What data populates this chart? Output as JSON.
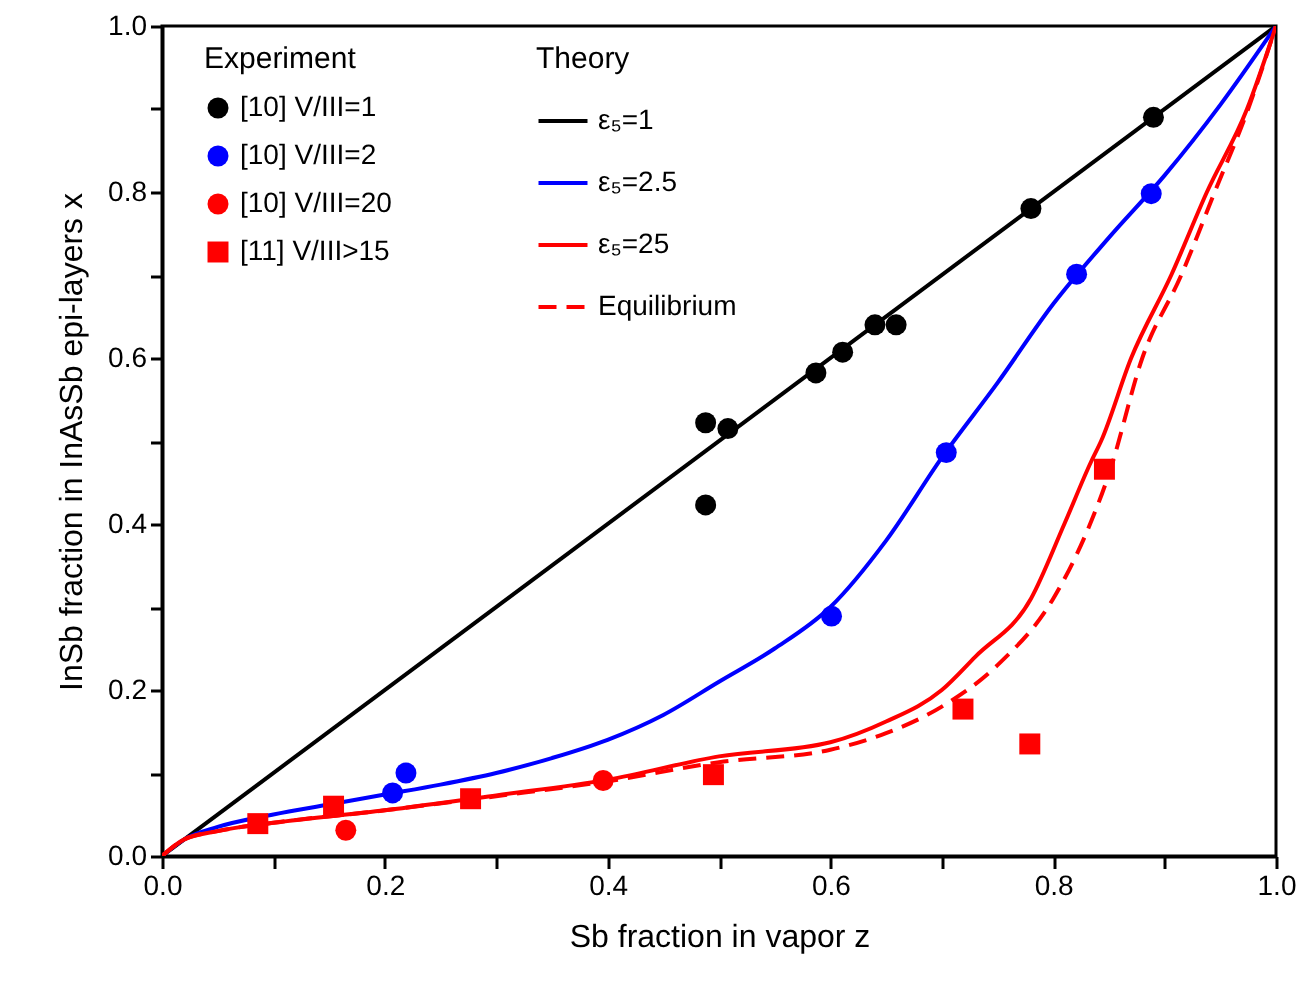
{
  "chart_data": {
    "type": "line",
    "xlabel": "Sb fraction in vapor z",
    "ylabel": "InSb fraction in InAsSb epi-layers x",
    "xlim": [
      0,
      1
    ],
    "ylim": [
      0,
      1
    ],
    "xticks": [
      {
        "value": 0,
        "label": "0.0"
      },
      {
        "value": 0.1,
        "label": null
      },
      {
        "value": 0.2,
        "label": "0.2"
      },
      {
        "value": 0.3,
        "label": null
      },
      {
        "value": 0.4,
        "label": "0.4"
      },
      {
        "value": 0.5,
        "label": null
      },
      {
        "value": 0.6,
        "label": "0.6"
      },
      {
        "value": 0.7,
        "label": null
      },
      {
        "value": 0.8,
        "label": "0.8"
      },
      {
        "value": 0.9,
        "label": null
      },
      {
        "value": 1,
        "label": "1.0"
      }
    ],
    "yticks": [
      {
        "value": 0,
        "label": "0.0"
      },
      {
        "value": 0.1,
        "label": null
      },
      {
        "value": 0.2,
        "label": "0.2"
      },
      {
        "value": 0.3,
        "label": null
      },
      {
        "value": 0.4,
        "label": "0.4"
      },
      {
        "value": 0.5,
        "label": null
      },
      {
        "value": 0.6,
        "label": "0.6"
      },
      {
        "value": 0.7,
        "label": null
      },
      {
        "value": 0.8,
        "label": "0.8"
      },
      {
        "value": 0.9,
        "label": null
      },
      {
        "value": 1,
        "label": "1.0"
      }
    ],
    "legend": "top left",
    "legend_title": "Experiment",
    "annotations": [
      "Theory"
    ],
    "series": [
      {
        "name": "[10] V/III=1",
        "type": "scatter",
        "marker": "circle",
        "color": "#000000",
        "x": [
          0.488,
          0.508,
          0.488,
          0.587,
          0.611,
          0.64,
          0.659,
          0.78,
          0.89
        ],
        "values": [
          0.522,
          0.515,
          0.423,
          0.582,
          0.607,
          0.64,
          0.64,
          0.78,
          0.89
        ]
      },
      {
        "name": "[10] V/III=2",
        "type": "scatter",
        "marker": "circle",
        "color": "#0000ff",
        "x": [
          0.207,
          0.219,
          0.601,
          0.704,
          0.821,
          0.888
        ],
        "values": [
          0.076,
          0.1,
          0.289,
          0.486,
          0.701,
          0.798
        ]
      },
      {
        "name": "[10] V/III=20",
        "type": "scatter",
        "marker": "circle",
        "color": "#ff0000",
        "x": [
          0.165,
          0.396
        ],
        "values": [
          0.031,
          0.091
        ]
      },
      {
        "name": "[11] V/III>15",
        "type": "scatter",
        "marker": "square",
        "color": "#ff0000",
        "x": [
          0.086,
          0.154,
          0.277,
          0.495,
          0.719,
          0.779,
          0.846
        ],
        "values": [
          0.039,
          0.06,
          0.069,
          0.098,
          0.177,
          0.135,
          0.466
        ]
      },
      {
        "name": "ε₅=1",
        "line_style": "solid",
        "color": "#000000",
        "x": [
          0,
          1
        ],
        "values": [
          0,
          1
        ]
      },
      {
        "name": "ε₅=2.5",
        "line_style": "solid",
        "color": "#0000ff",
        "x": [
          0,
          0.02,
          0.05,
          0.1,
          0.15,
          0.2,
          0.25,
          0.3,
          0.35,
          0.4,
          0.45,
          0.5,
          0.55,
          0.6,
          0.65,
          0.7,
          0.75,
          0.8,
          0.85,
          0.9,
          0.95,
          1
        ],
        "values": [
          0,
          0.02,
          0.035,
          0.05,
          0.062,
          0.074,
          0.086,
          0.1,
          0.118,
          0.14,
          0.17,
          0.21,
          0.25,
          0.3,
          0.38,
          0.48,
          0.57,
          0.665,
          0.745,
          0.82,
          0.905,
          1
        ]
      },
      {
        "name": "ε₅=25",
        "line_style": "solid",
        "color": "#ff0000",
        "x": [
          0,
          0.02,
          0.05,
          0.1,
          0.2,
          0.3,
          0.4,
          0.5,
          0.6,
          0.65,
          0.7,
          0.73,
          0.78,
          0.81,
          0.834,
          0.843,
          0.87,
          0.906,
          0.938,
          0.974,
          1
        ],
        "values": [
          0,
          0.02,
          0.03,
          0.04,
          0.055,
          0.073,
          0.092,
          0.12,
          0.137,
          0.162,
          0.2,
          0.24,
          0.31,
          0.4,
          0.475,
          0.5,
          0.6,
          0.7,
          0.8,
          0.9,
          1
        ]
      },
      {
        "name": "Equilibrium",
        "line_style": "dashed",
        "color": "#ff0000",
        "x": [
          0,
          0.02,
          0.05,
          0.1,
          0.2,
          0.3,
          0.4,
          0.5,
          0.6,
          0.65,
          0.7,
          0.75,
          0.8,
          0.83,
          0.85,
          0.88,
          0.915,
          0.945,
          0.975,
          1
        ],
        "values": [
          0,
          0.02,
          0.03,
          0.04,
          0.055,
          0.072,
          0.09,
          0.113,
          0.128,
          0.148,
          0.18,
          0.23,
          0.31,
          0.39,
          0.46,
          0.6,
          0.7,
          0.8,
          0.9,
          1
        ]
      }
    ]
  }
}
